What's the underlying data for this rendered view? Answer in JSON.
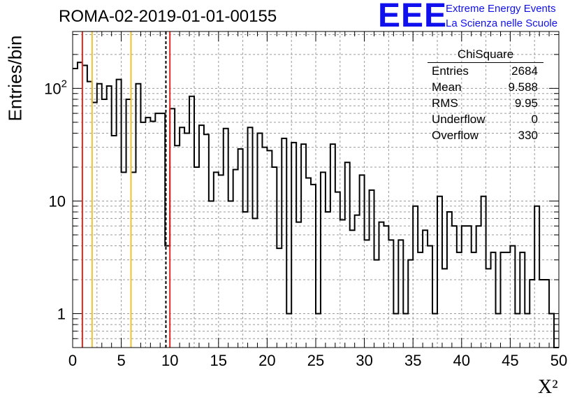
{
  "header": {
    "run_title": "ROMA-02-2019-01-01-00155",
    "logo_mark": "EEE",
    "logo_line1": "Extreme Energy Events",
    "logo_line2": "La Scienza nelle Scuole"
  },
  "stats_box": {
    "title": "ChiSquare",
    "rows": [
      {
        "label": "Entries",
        "value": "2684"
      },
      {
        "label": "Mean",
        "value": "9.588"
      },
      {
        "label": "RMS",
        "value": "9.95"
      },
      {
        "label": "Underflow",
        "value": "0"
      },
      {
        "label": "Overflow",
        "value": "330"
      }
    ]
  },
  "colors": {
    "histogram": "#000000",
    "red_marker": "#e8281e",
    "yellow_marker": "#f2c12e",
    "dashed_marker": "#000000",
    "grid": "#9a9a9a"
  },
  "chart_data": {
    "type": "bar",
    "style": "step-histogram",
    "title": "ROMA-02-2019-01-01-00155",
    "xlabel": "X²",
    "ylabel": "Entries/bin",
    "xlim": [
      0,
      50
    ],
    "ylim": [
      0.5,
      320
    ],
    "y_scale": "log",
    "grid": true,
    "bin_width": 0.5,
    "x_ticks": [
      "0",
      "5",
      "10",
      "15",
      "20",
      "25",
      "30",
      "35",
      "40",
      "45",
      "50"
    ],
    "y_ticks": [
      {
        "value": 1,
        "label": "1"
      },
      {
        "value": 10,
        "label": "10"
      },
      {
        "value": 100,
        "label": "10^2"
      }
    ],
    "bin_edges_start": 0,
    "values": [
      150,
      170,
      160,
      115,
      75,
      110,
      80,
      105,
      38,
      120,
      18,
      80,
      18,
      110,
      50,
      55,
      51,
      60,
      60,
      4,
      66,
      31,
      45,
      40,
      85,
      20,
      47,
      39,
      10,
      18,
      17,
      44,
      10,
      19,
      29,
      8,
      45,
      7,
      40,
      30,
      28,
      20,
      3.8,
      36,
      1,
      33,
      6.5,
      32,
      16,
      14,
      1,
      18,
      8,
      32,
      12,
      6.8,
      22,
      5.5,
      7.5,
      17,
      4.5,
      12.5,
      3,
      6.5,
      6,
      4.5,
      1,
      4.5,
      1,
      3,
      9,
      3.5,
      5.5,
      4,
      1,
      11,
      2.5,
      8,
      6,
      3.5,
      6,
      6,
      3.5,
      6,
      11,
      2.5,
      3.5,
      1,
      3.5,
      3.5,
      4,
      1,
      3.5,
      1,
      2,
      9,
      2,
      2,
      1,
      0
    ],
    "vertical_markers": [
      {
        "x": 1,
        "color": "red"
      },
      {
        "x": 2,
        "color": "yellow"
      },
      {
        "x": 6,
        "color": "yellow"
      },
      {
        "x": 9.588,
        "color": "black-dashed"
      },
      {
        "x": 10,
        "color": "red"
      }
    ]
  }
}
